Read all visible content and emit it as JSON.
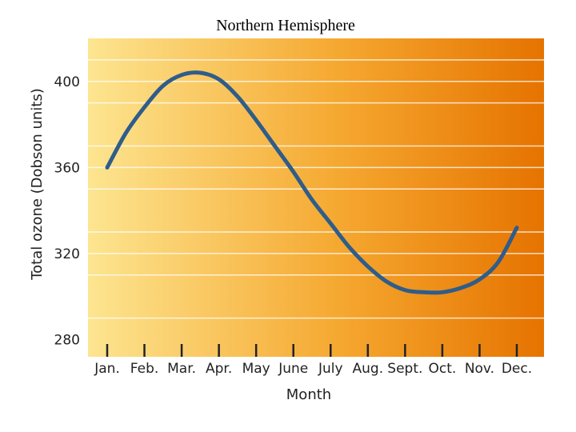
{
  "chart_data": {
    "type": "line",
    "title": "Northern Hemisphere",
    "xlabel": "Month",
    "ylabel": "Total ozone (Dobson units)",
    "categories": [
      "Jan.",
      "Feb.",
      "Mar.",
      "Apr.",
      "May",
      "June",
      "July",
      "Aug.",
      "Sept.",
      "Oct.",
      "Nov.",
      "Dec."
    ],
    "yticks": [
      280,
      320,
      360,
      400
    ],
    "ylim": [
      272,
      420
    ],
    "grid": true,
    "series": [
      {
        "name": "Total ozone",
        "x": [
          0,
          0.5,
          1,
          1.5,
          2,
          2.5,
          3,
          3.5,
          4,
          4.5,
          5,
          5.5,
          6,
          6.5,
          7,
          7.5,
          8,
          8.5,
          9,
          9.5,
          10,
          10.5,
          11
        ],
        "values": [
          360,
          376,
          388,
          398,
          403,
          404,
          401,
          393,
          382,
          370,
          358,
          345,
          334,
          323,
          314,
          307,
          303,
          302,
          302,
          304,
          308,
          316,
          332
        ]
      }
    ],
    "colors": {
      "line": "#2f5d8a",
      "gradient_start": "#fde590",
      "gradient_mid": "#f5a830",
      "gradient_end": "#e67300"
    }
  }
}
